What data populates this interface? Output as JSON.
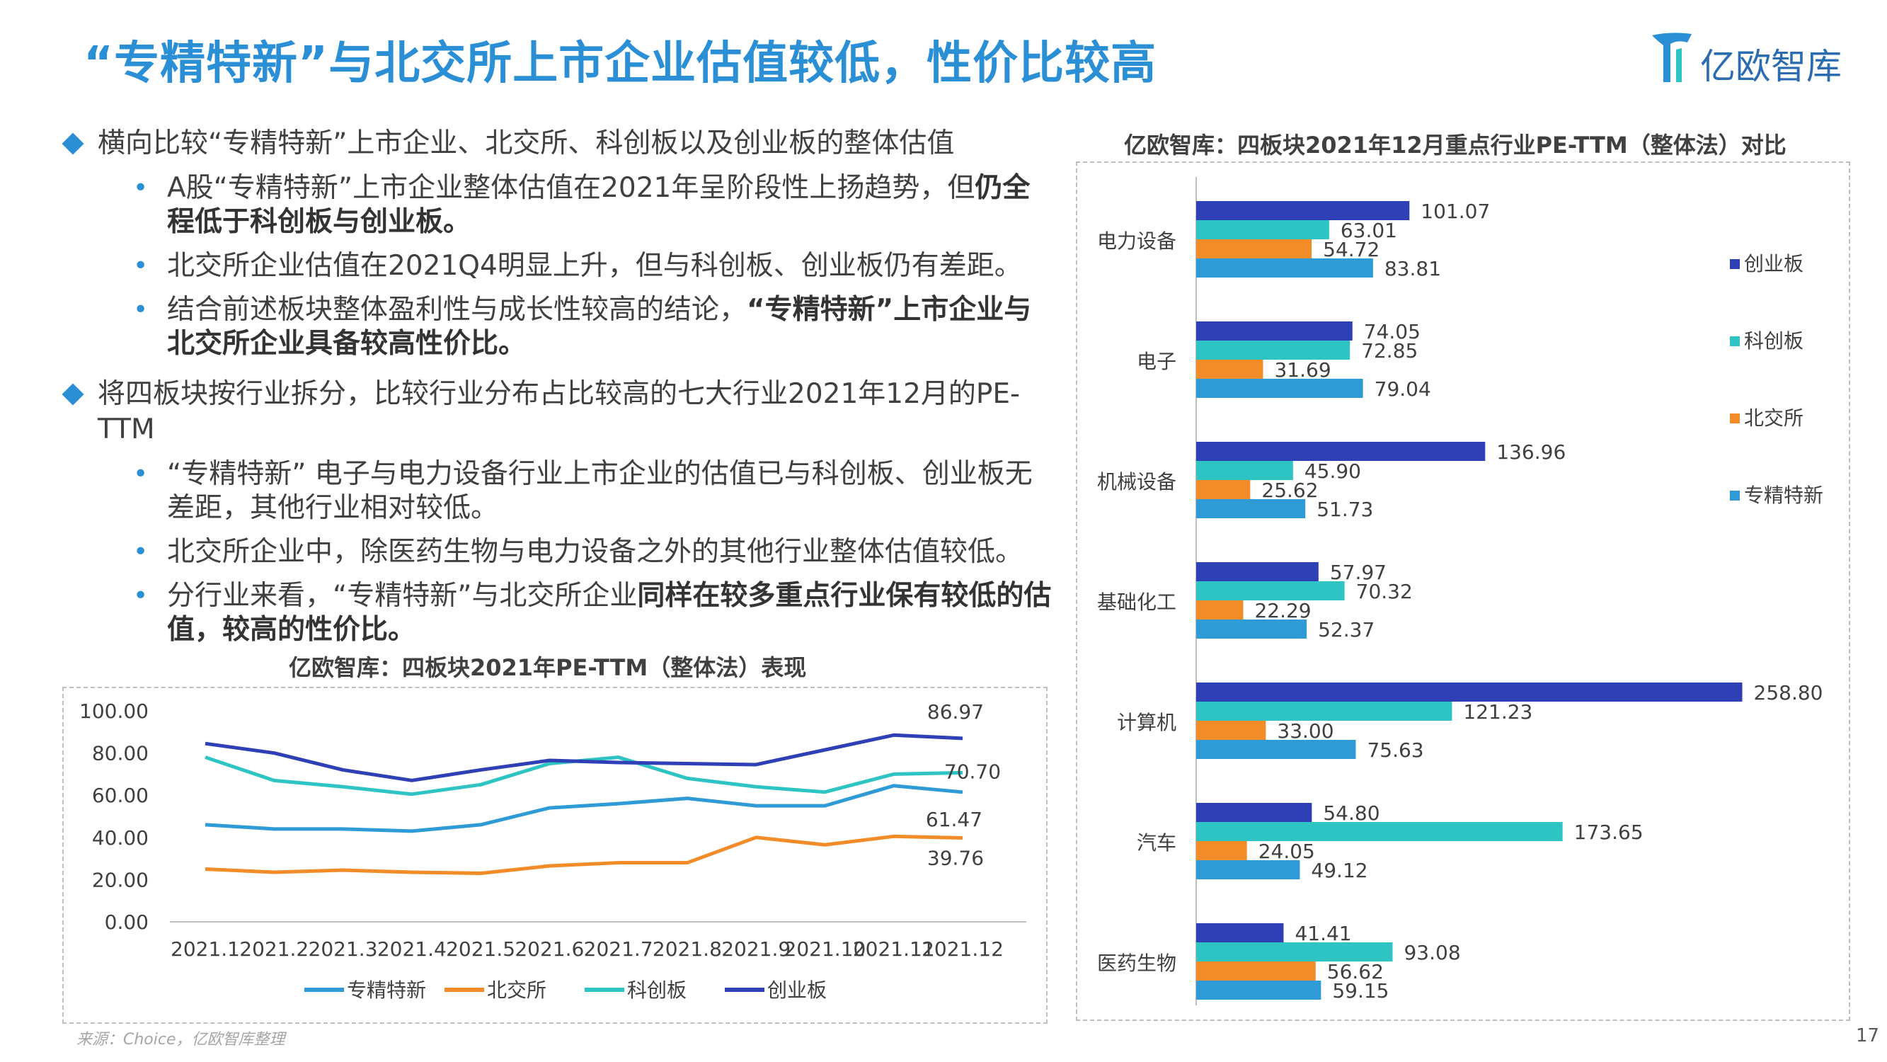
{
  "title": "“专精特新”与北交所上市企业估值较低，性价比较高",
  "logo_text": "亿欧智库",
  "bullets": {
    "b1": "横向比较“专精特新”上市企业、北交所、科创板以及创业板的整体估值",
    "b1_1_a": "A股“专精特新”上市企业整体估值在2021年呈阶段性上扬趋势，但",
    "b1_1_b": "仍全程低于科创板与创业板。",
    "b1_2": "北交所企业估值在2021Q4明显上升，但与科创板、创业板仍有差距。",
    "b1_3_a": "结合前述板块整体盈利性与成长性较高的结论，",
    "b1_3_b": "“专精特新”上市企业与北交所企业具备较高性价比。",
    "b2": "将四板块按行业拆分，比较行业分布占比较高的七大行业2021年12月的PE-TTM",
    "b2_1": "“专精特新” 电子与电力设备行业上市企业的估值已与科创板、创业板无差距，其他行业相对较低。",
    "b2_2": "北交所企业中，除医药生物与电力设备之外的其他行业整体估值较低。",
    "b2_3_a": "分行业来看，“专精特新”与北交所企业",
    "b2_3_b": "同样在较多重点行业保有较低的估值，较高的性价比。"
  },
  "line_chart_title": "亿欧智库：四板块2021年PE-TTM（整体法）表现",
  "bar_chart_title": "亿欧智库：四板块2021年12月重点行业PE-TTM（整体法）对比",
  "source": "来源：Choice，亿欧智库整理",
  "page_number": "17",
  "chart_data": [
    {
      "type": "line",
      "title": "亿欧智库：四板块2021年PE-TTM（整体法）表现",
      "categories": [
        "2021.1",
        "2021.2",
        "2021.3",
        "2021.4",
        "2021.5",
        "2021.6",
        "2021.7",
        "2021.8",
        "2021.9",
        "2021.10",
        "2021.11",
        "2021.12"
      ],
      "ylim": [
        0,
        100
      ],
      "yticks": [
        "0.00",
        "20.00",
        "40.00",
        "60.00",
        "80.00",
        "100.00"
      ],
      "series": [
        {
          "name": "专精特新",
          "color": "#2e9bd6",
          "values": [
            46,
            44,
            44,
            43,
            46,
            54,
            56,
            58.5,
            55,
            55,
            64.5,
            61.47
          ],
          "end_label": "61.47"
        },
        {
          "name": "北交所",
          "color": "#f28c28",
          "values": [
            25,
            23.5,
            24.5,
            23.5,
            23,
            26.5,
            28,
            28,
            40,
            36.5,
            40.5,
            39.76
          ],
          "end_label": "39.76"
        },
        {
          "name": "科创板",
          "color": "#2ec4c4",
          "values": [
            78,
            67,
            64,
            60.5,
            65,
            75,
            78,
            68,
            64,
            61.5,
            70,
            70.7
          ],
          "end_label": "70.70"
        },
        {
          "name": "创业板",
          "color": "#2f3fb5",
          "values": [
            84.5,
            80,
            72,
            67,
            72,
            76.5,
            75.5,
            75,
            74.5,
            81.5,
            88.5,
            86.97
          ],
          "end_label": "86.97"
        }
      ]
    },
    {
      "type": "bar",
      "orientation": "horizontal",
      "title": "亿欧智库：四板块2021年12月重点行业PE-TTM（整体法）对比",
      "categories": [
        "电力设备",
        "电子",
        "机械设备",
        "基础化工",
        "计算机",
        "汽车",
        "医药生物"
      ],
      "xlim": [
        0,
        265
      ],
      "series": [
        {
          "name": "创业板",
          "color": "#2f3fb5",
          "values": [
            101.07,
            74.05,
            136.96,
            57.97,
            258.8,
            54.8,
            41.41
          ],
          "labels": [
            "101.07",
            "74.05",
            "136.96",
            "57.97",
            "258.80",
            "54.80",
            "41.41"
          ]
        },
        {
          "name": "科创板",
          "color": "#2ec4c4",
          "values": [
            63.01,
            72.85,
            45.9,
            70.32,
            121.23,
            173.65,
            93.08
          ],
          "labels": [
            "63.01",
            "72.85",
            "45.90",
            "70.32",
            "121.23",
            "173.65",
            "93.08"
          ]
        },
        {
          "name": "北交所",
          "color": "#f28c28",
          "values": [
            54.72,
            31.69,
            25.62,
            22.29,
            33.0,
            24.05,
            56.62
          ],
          "labels": [
            "54.72",
            "31.69",
            "25.62",
            "22.29",
            "33.00",
            "24.05",
            "56.62"
          ]
        },
        {
          "name": "专精特新",
          "color": "#2e9bd6",
          "values": [
            83.81,
            79.04,
            51.73,
            52.37,
            75.63,
            49.12,
            59.15
          ],
          "labels": [
            "83.81",
            "79.04",
            "51.73",
            "52.37",
            "75.63",
            "49.12",
            "59.15"
          ]
        }
      ]
    }
  ]
}
